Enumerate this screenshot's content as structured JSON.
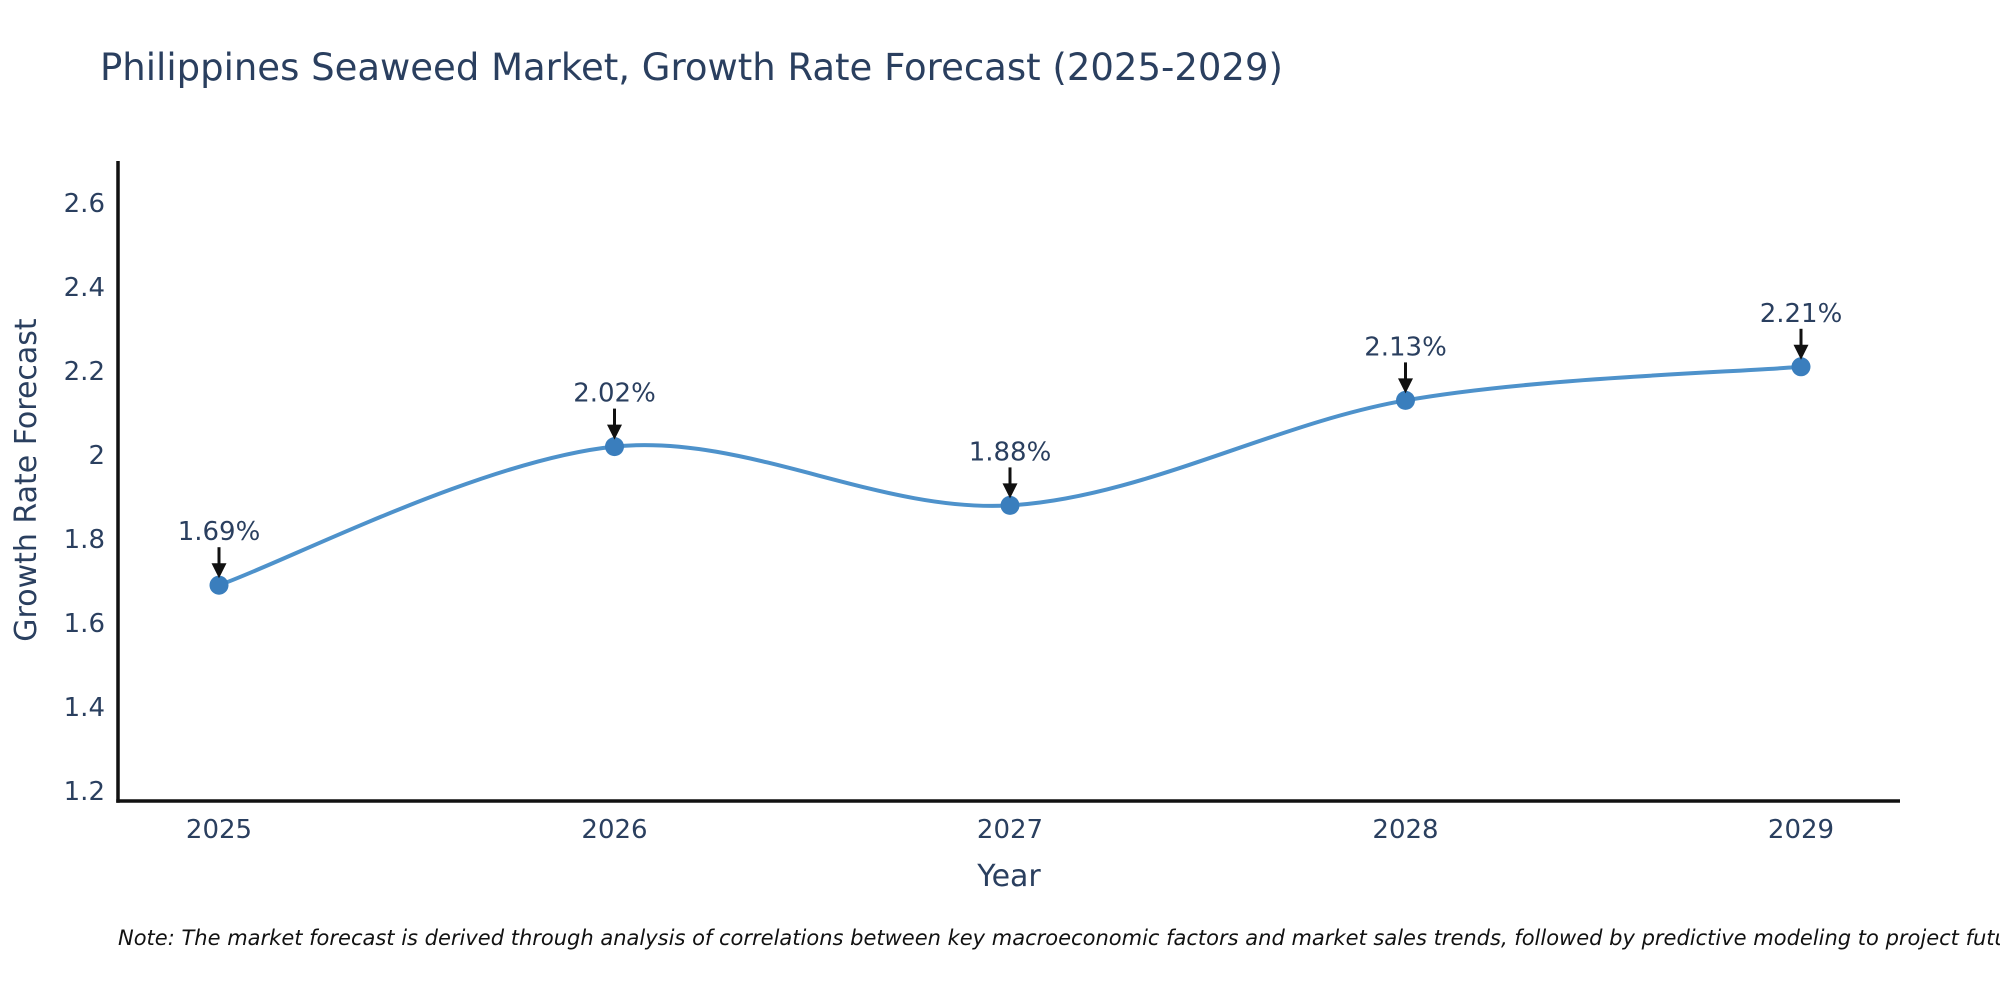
{
  "chart": {
    "title": "Philippines Seaweed Market, Growth Rate Forecast (2025-2029)",
    "xlabel": "Year",
    "ylabel": "Growth Rate Forecast",
    "note": "Note: The market forecast is derived through analysis of correlations between key macroeconomic factors and market sales trends, followed by predictive modeling to project future sales"
  },
  "chart_data": {
    "type": "line",
    "line_shape": "spline",
    "title": "Philippines Seaweed Market, Growth Rate Forecast (2025-2029)",
    "xlabel": "Year",
    "ylabel": "Growth Rate Forecast",
    "x": [
      2025,
      2026,
      2027,
      2028,
      2029
    ],
    "series": [
      {
        "name": "Growth Rate Forecast",
        "values": [
          1.69,
          2.02,
          1.88,
          2.13,
          2.21
        ]
      }
    ],
    "point_labels": [
      "1.69%",
      "2.02%",
      "1.88%",
      "2.13%",
      "2.21%"
    ],
    "xtick_labels": [
      "2025",
      "2026",
      "2027",
      "2028",
      "2029"
    ],
    "yticks": [
      1.2,
      1.4,
      1.6,
      1.8,
      2.0,
      2.2,
      2.4,
      2.6
    ],
    "ytick_labels": [
      "1.2",
      "1.4",
      "1.6",
      "1.8",
      "2",
      "2.2",
      "2.4",
      "2.6"
    ],
    "ylim": [
      1.2,
      2.6
    ],
    "grid": false,
    "legend": false,
    "colors": {
      "line": "#4e92cb",
      "marker": "#3a7ebd",
      "text": "#2a3f5f",
      "axis": "#111111",
      "annotation_arrow": "#111111"
    }
  }
}
